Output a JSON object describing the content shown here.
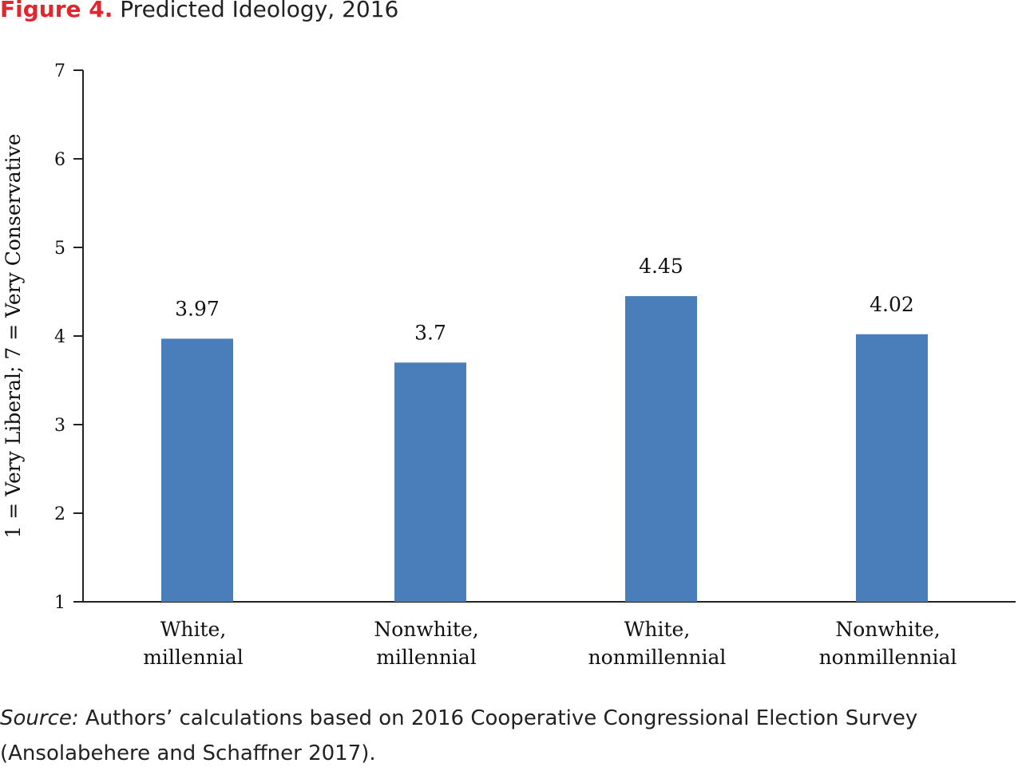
{
  "figure": {
    "label": "Figure 4.",
    "title": "Predicted Ideology, 2016"
  },
  "chart_data": {
    "type": "bar",
    "categories": [
      [
        "White,",
        "millennial"
      ],
      [
        "Nonwhite,",
        "millennial"
      ],
      [
        "White,",
        "nonmillennial"
      ],
      [
        "Nonwhite,",
        "nonmillennial"
      ]
    ],
    "values": [
      3.97,
      3.7,
      4.45,
      4.02
    ],
    "value_labels": [
      "3.97",
      "3.7",
      "4.45",
      "4.02"
    ],
    "ylabel": "1 = Very Liberal; 7 = Very Conservative",
    "ylim": [
      1,
      7
    ],
    "yticks": [
      1,
      2,
      3,
      4,
      5,
      6,
      7
    ],
    "grid": false,
    "bar_color": "#4a7ebb"
  },
  "source": {
    "label": "Source:",
    "text": " Authors’ calculations based on 2016 Cooperative Congressional Election Survey (Ansolabehere and Schaffner 2017)."
  }
}
